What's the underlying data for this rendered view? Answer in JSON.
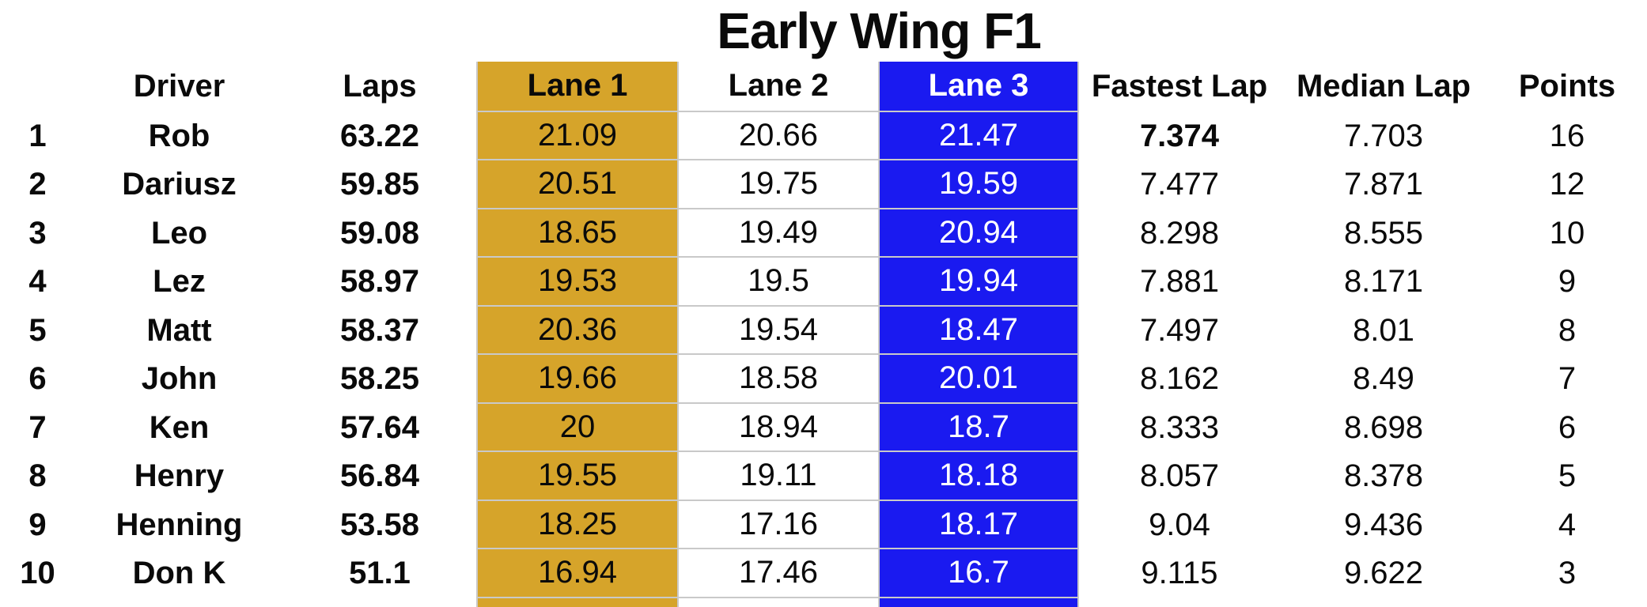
{
  "title": "Early Wing F1",
  "colors": {
    "lane1_background": "#D6A42A",
    "lane3_background": "#1A1AF0",
    "lane3_text": "#FFFFFF",
    "gridline": "#C9C9C9",
    "text": "#0A0A0A"
  },
  "chart_data": {
    "type": "table",
    "title": "Early Wing F1",
    "columns": [
      "",
      "Driver",
      "Laps",
      "Lane 1",
      "Lane 2",
      "Lane 3",
      "Fastest Lap",
      "Median Lap",
      "Points"
    ],
    "column_keys": [
      "rank",
      "driver",
      "laps",
      "lane1",
      "lane2",
      "lane3",
      "fastest",
      "median",
      "points"
    ],
    "layout_hints": {
      "lane1_highlight": "gold background, black text",
      "lane3_highlight": "blue background, white text",
      "bold_columns": [
        "rank",
        "driver",
        "laps"
      ],
      "bold_cells": [
        "row 1 fastest lap"
      ],
      "gridlines": "only on Lane 1, Lane 2, Lane 3 columns"
    },
    "rows": [
      {
        "rank": "1",
        "driver": "Rob",
        "laps": "63.22",
        "lane1": "21.09",
        "lane2": "20.66",
        "lane3": "21.47",
        "fastest": "7.374",
        "median": "7.703",
        "points": "16",
        "fastest_bold": true
      },
      {
        "rank": "2",
        "driver": "Dariusz",
        "laps": "59.85",
        "lane1": "20.51",
        "lane2": "19.75",
        "lane3": "19.59",
        "fastest": "7.477",
        "median": "7.871",
        "points": "12",
        "fastest_bold": false
      },
      {
        "rank": "3",
        "driver": "Leo",
        "laps": "59.08",
        "lane1": "18.65",
        "lane2": "19.49",
        "lane3": "20.94",
        "fastest": "8.298",
        "median": "8.555",
        "points": "10",
        "fastest_bold": false
      },
      {
        "rank": "4",
        "driver": "Lez",
        "laps": "58.97",
        "lane1": "19.53",
        "lane2": "19.5",
        "lane3": "19.94",
        "fastest": "7.881",
        "median": "8.171",
        "points": "9",
        "fastest_bold": false
      },
      {
        "rank": "5",
        "driver": "Matt",
        "laps": "58.37",
        "lane1": "20.36",
        "lane2": "19.54",
        "lane3": "18.47",
        "fastest": "7.497",
        "median": "8.01",
        "points": "8",
        "fastest_bold": false
      },
      {
        "rank": "6",
        "driver": "John",
        "laps": "58.25",
        "lane1": "19.66",
        "lane2": "18.58",
        "lane3": "20.01",
        "fastest": "8.162",
        "median": "8.49",
        "points": "7",
        "fastest_bold": false
      },
      {
        "rank": "7",
        "driver": "Ken",
        "laps": "57.64",
        "lane1": "20",
        "lane2": "18.94",
        "lane3": "18.7",
        "fastest": "8.333",
        "median": "8.698",
        "points": "6",
        "fastest_bold": false
      },
      {
        "rank": "8",
        "driver": "Henry",
        "laps": "56.84",
        "lane1": "19.55",
        "lane2": "19.11",
        "lane3": "18.18",
        "fastest": "8.057",
        "median": "8.378",
        "points": "5",
        "fastest_bold": false
      },
      {
        "rank": "9",
        "driver": "Henning",
        "laps": "53.58",
        "lane1": "18.25",
        "lane2": "17.16",
        "lane3": "18.17",
        "fastest": "9.04",
        "median": "9.436",
        "points": "4",
        "fastest_bold": false
      },
      {
        "rank": "10",
        "driver": "Don K",
        "laps": "51.1",
        "lane1": "16.94",
        "lane2": "17.46",
        "lane3": "16.7",
        "fastest": "9.115",
        "median": "9.622",
        "points": "3",
        "fastest_bold": false
      }
    ]
  }
}
